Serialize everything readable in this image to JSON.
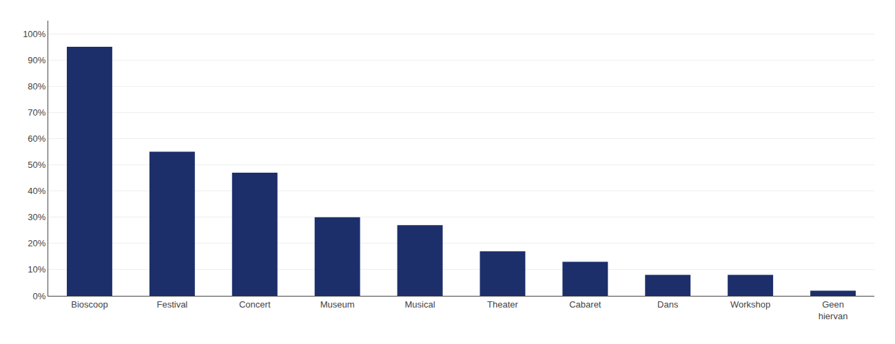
{
  "chart_data": {
    "type": "bar",
    "categories": [
      "Bioscoop",
      "Festival",
      "Concert",
      "Museum",
      "Musical",
      "Theater",
      "Cabaret",
      "Dans",
      "Workshop",
      "Geen\nhiervan"
    ],
    "values": [
      0.95,
      0.55,
      0.47,
      0.3,
      0.27,
      0.17,
      0.13,
      0.08,
      0.08,
      0.02
    ],
    "color": "#1c2f6b",
    "ylim": [
      0,
      1.05
    ],
    "yticks": [
      {
        "value": 0.0,
        "label": "0%"
      },
      {
        "value": 0.1,
        "label": "10%"
      },
      {
        "value": 0.2,
        "label": "20%"
      },
      {
        "value": 0.3,
        "label": "30%"
      },
      {
        "value": 0.4,
        "label": "40%"
      },
      {
        "value": 0.5,
        "label": "50%"
      },
      {
        "value": 0.6,
        "label": "60%"
      },
      {
        "value": 0.7,
        "label": "70%"
      },
      {
        "value": 0.8,
        "label": "80%"
      },
      {
        "value": 0.9,
        "label": "90%"
      },
      {
        "value": 1.0,
        "label": "100%"
      }
    ],
    "grid": true
  }
}
